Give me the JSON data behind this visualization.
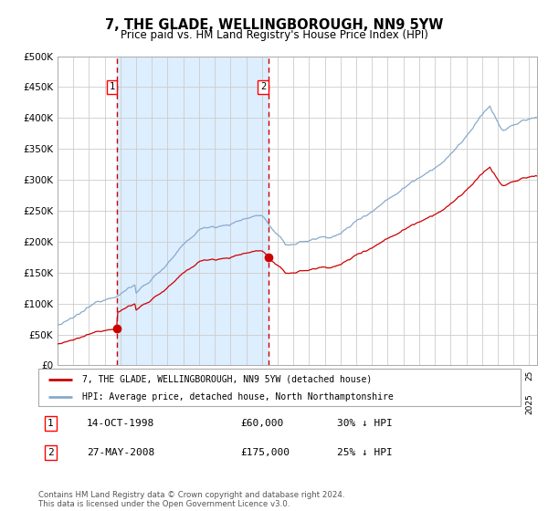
{
  "title": "7, THE GLADE, WELLINGBOROUGH, NN9 5YW",
  "subtitle": "Price paid vs. HM Land Registry's House Price Index (HPI)",
  "legend_line1": "7, THE GLADE, WELLINGBOROUGH, NN9 5YW (detached house)",
  "legend_line2": "HPI: Average price, detached house, North Northamptonshire",
  "annotation1_label": "1",
  "annotation1_date": "14-OCT-1998",
  "annotation1_price": "£60,000",
  "annotation1_hpi": "30% ↓ HPI",
  "annotation1_year": 1998.79,
  "annotation1_value": 60000,
  "annotation2_label": "2",
  "annotation2_date": "27-MAY-2008",
  "annotation2_price": "£175,000",
  "annotation2_hpi": "25% ↓ HPI",
  "annotation2_year": 2008.41,
  "annotation2_value": 175000,
  "shaded_color": "#ddeeff",
  "chart_bg_color": "#ffffff",
  "red_line_color": "#cc0000",
  "blue_line_color": "#88aacc",
  "dashed_line_color": "#cc0000",
  "background_color": "#ffffff",
  "grid_color": "#cccccc",
  "ylim": [
    0,
    500000
  ],
  "yticks": [
    0,
    50000,
    100000,
    150000,
    200000,
    250000,
    300000,
    350000,
    400000,
    450000,
    500000
  ],
  "xlim_start": 1995.0,
  "xlim_end": 2025.5,
  "footer": "Contains HM Land Registry data © Crown copyright and database right 2024.\nThis data is licensed under the Open Government Licence v3.0."
}
